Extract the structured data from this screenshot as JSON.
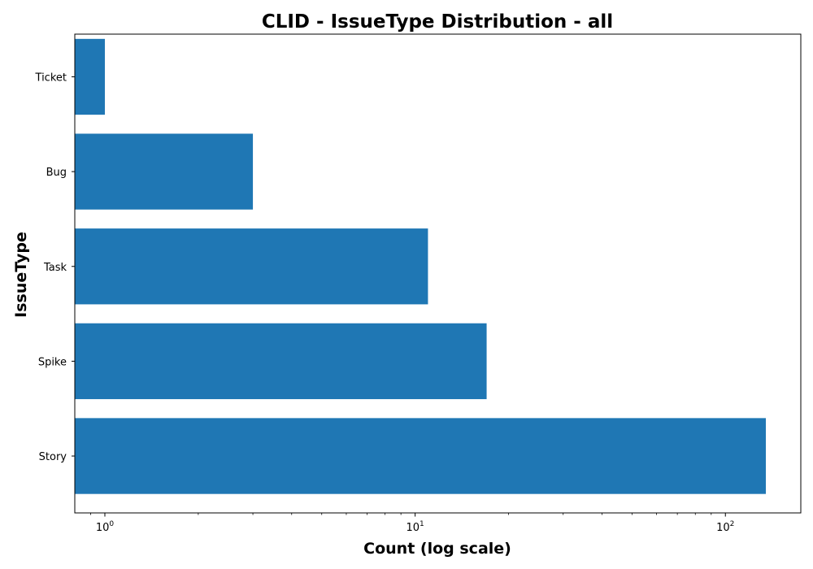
{
  "chart_data": {
    "type": "bar",
    "orientation": "horizontal",
    "title": "CLID - IssueType Distribution - all",
    "xlabel": "Count (log scale)",
    "ylabel": "IssueType",
    "x_scale": "log",
    "xlim": [
      0.8,
      175
    ],
    "categories": [
      "Story",
      "Spike",
      "Task",
      "Bug",
      "Ticket"
    ],
    "values": [
      135,
      17,
      11,
      3,
      1
    ],
    "x_ticks": [
      {
        "value": 1,
        "base": "10",
        "exp": "0"
      },
      {
        "value": 10,
        "base": "10",
        "exp": "1"
      },
      {
        "value": 100,
        "base": "10",
        "exp": "2"
      }
    ],
    "bar_color": "#1f77b4",
    "grid": false
  }
}
